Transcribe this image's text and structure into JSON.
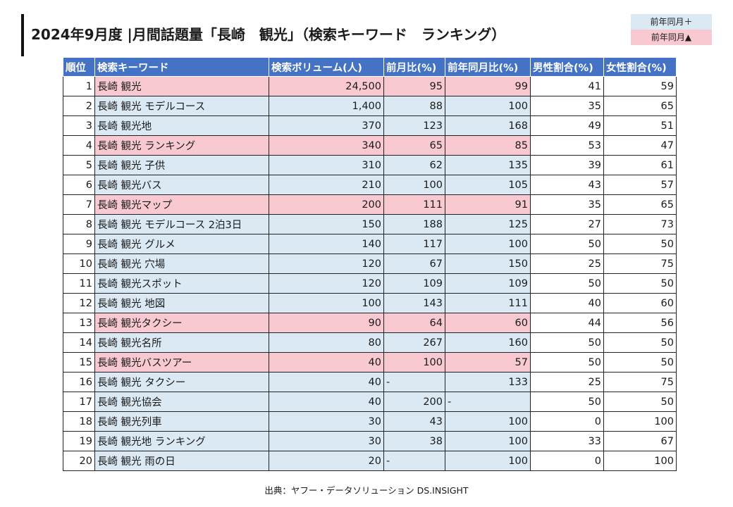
{
  "title": "2024年9月度 |月間話題量「長崎　観光」（検索キーワード　ランキング）",
  "legend": {
    "up_label": "前年同月＋",
    "down_label": "前年同月▲",
    "up_color": "#dbe9f4",
    "down_color": "#f9c9d1"
  },
  "header_color": "#4472c4",
  "columns": {
    "rank": "順位",
    "keyword": "検索キーワード",
    "volume": "検索ボリューム(人)",
    "mom": "前月比(%)",
    "yoy": "前年同月比(%)",
    "male": "男性割合(%)",
    "female": "女性割合(%)"
  },
  "rows": [
    {
      "rank": "1",
      "keyword": "長崎 観光",
      "volume": "24,500",
      "mom": "95",
      "yoy": "99",
      "male": "41",
      "female": "59",
      "status": "down"
    },
    {
      "rank": "2",
      "keyword": "長崎 観光 モデルコース",
      "volume": "1,400",
      "mom": "88",
      "yoy": "100",
      "male": "35",
      "female": "65",
      "status": "up"
    },
    {
      "rank": "3",
      "keyword": "長崎 観光地",
      "volume": "370",
      "mom": "123",
      "yoy": "168",
      "male": "49",
      "female": "51",
      "status": "up"
    },
    {
      "rank": "4",
      "keyword": "長崎 観光 ランキング",
      "volume": "340",
      "mom": "65",
      "yoy": "85",
      "male": "53",
      "female": "47",
      "status": "down"
    },
    {
      "rank": "5",
      "keyword": "長崎 観光 子供",
      "volume": "310",
      "mom": "62",
      "yoy": "135",
      "male": "39",
      "female": "61",
      "status": "up"
    },
    {
      "rank": "6",
      "keyword": "長崎 観光バス",
      "volume": "210",
      "mom": "100",
      "yoy": "105",
      "male": "43",
      "female": "57",
      "status": "up"
    },
    {
      "rank": "7",
      "keyword": "長崎 観光マップ",
      "volume": "200",
      "mom": "111",
      "yoy": "91",
      "male": "35",
      "female": "65",
      "status": "down"
    },
    {
      "rank": "8",
      "keyword": "長崎 観光 モデルコース 2泊3日",
      "volume": "150",
      "mom": "188",
      "yoy": "125",
      "male": "27",
      "female": "73",
      "status": "up"
    },
    {
      "rank": "9",
      "keyword": "長崎 観光 グルメ",
      "volume": "140",
      "mom": "117",
      "yoy": "100",
      "male": "50",
      "female": "50",
      "status": "up"
    },
    {
      "rank": "10",
      "keyword": "長崎 観光 穴場",
      "volume": "120",
      "mom": "67",
      "yoy": "150",
      "male": "25",
      "female": "75",
      "status": "up"
    },
    {
      "rank": "11",
      "keyword": "長崎 観光スポット",
      "volume": "120",
      "mom": "109",
      "yoy": "109",
      "male": "50",
      "female": "50",
      "status": "up"
    },
    {
      "rank": "12",
      "keyword": "長崎 観光 地図",
      "volume": "100",
      "mom": "143",
      "yoy": "111",
      "male": "40",
      "female": "60",
      "status": "up"
    },
    {
      "rank": "13",
      "keyword": "長崎 観光タクシー",
      "volume": "90",
      "mom": "64",
      "yoy": "60",
      "male": "44",
      "female": "56",
      "status": "down"
    },
    {
      "rank": "14",
      "keyword": "長崎 観光名所",
      "volume": "80",
      "mom": "267",
      "yoy": "160",
      "male": "50",
      "female": "50",
      "status": "up"
    },
    {
      "rank": "15",
      "keyword": "長崎 観光バスツアー",
      "volume": "40",
      "mom": "100",
      "yoy": "57",
      "male": "50",
      "female": "50",
      "status": "down"
    },
    {
      "rank": "16",
      "keyword": "長崎 観光 タクシー",
      "volume": "40",
      "mom": "-",
      "yoy": "133",
      "male": "25",
      "female": "75",
      "status": "up"
    },
    {
      "rank": "17",
      "keyword": "長崎 観光協会",
      "volume": "40",
      "mom": "200",
      "yoy": "-",
      "male": "50",
      "female": "50",
      "status": "up"
    },
    {
      "rank": "18",
      "keyword": "長崎 観光列車",
      "volume": "30",
      "mom": "43",
      "yoy": "100",
      "male": "0",
      "female": "100",
      "status": "up"
    },
    {
      "rank": "19",
      "keyword": "長崎 観光地 ランキング",
      "volume": "30",
      "mom": "38",
      "yoy": "100",
      "male": "33",
      "female": "67",
      "status": "up"
    },
    {
      "rank": "20",
      "keyword": "長崎 観光 雨の日",
      "volume": "20",
      "mom": "-",
      "yoy": "100",
      "male": "0",
      "female": "100",
      "status": "up"
    }
  ],
  "source": "出典：ヤフー・データソリューション DS.INSIGHT"
}
